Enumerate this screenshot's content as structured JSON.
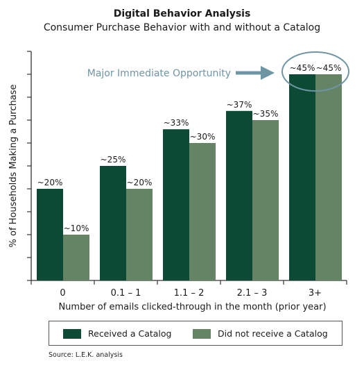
{
  "chart_data": {
    "type": "bar",
    "title": "Digital Behavior Analysis",
    "subtitle": "Consumer Purchase Behavior with and without a Catalog",
    "xlabel": "Number of emails clicked-through in the month (prior year)",
    "ylabel": "% of Households Making a Purchase",
    "categories": [
      "0",
      "0.1 – 1",
      "1.1 – 2",
      "2.1 – 3",
      "3+"
    ],
    "series": [
      {
        "name": "Received a Catalog",
        "color": "#0d4a36",
        "values": [
          20,
          25,
          33,
          37,
          45
        ],
        "labels": [
          "~20%",
          "~25%",
          "~33%",
          "~37%",
          "~45%"
        ]
      },
      {
        "name": "Did not receive a Catalog",
        "color": "#658365",
        "values": [
          10,
          20,
          30,
          35,
          45
        ],
        "labels": [
          "~10%",
          "~20%",
          "~30%",
          "~35%",
          "~45%"
        ]
      }
    ],
    "ylim": [
      0,
      50
    ],
    "ytick_count": 10,
    "annotation": {
      "text": "Major Immediate Opportunity",
      "color": "#6e95a4",
      "target_category": "3+"
    },
    "legend_position": "bottom",
    "grid": false
  },
  "source": "Source: L.E.K. analysis"
}
